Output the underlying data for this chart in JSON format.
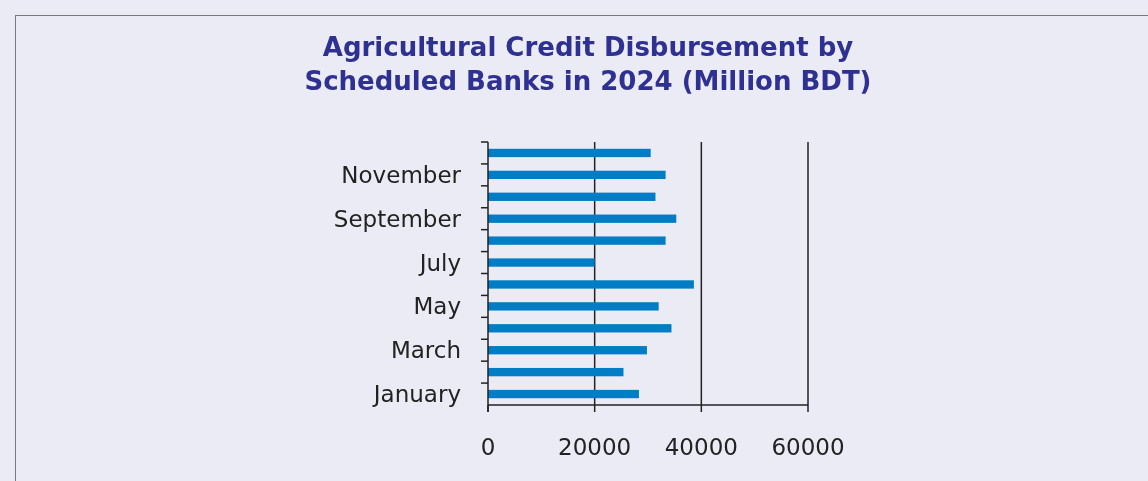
{
  "chart_data": {
    "type": "bar",
    "orientation": "horizontal",
    "title": "Agricultural Credit Disbursement by\nScheduled Banks in 2024 (Million BDT)",
    "categories": [
      null,
      "November",
      null,
      "September",
      null,
      "July",
      null,
      "May",
      null,
      "March",
      null,
      "January"
    ],
    "values": [
      30500,
      33300,
      31400,
      35300,
      33300,
      20000,
      38600,
      32000,
      34400,
      29800,
      25400,
      28300
    ],
    "color": "#007dc5",
    "xlim": [
      0,
      60000
    ],
    "xticks": [
      0,
      20000,
      40000,
      60000
    ],
    "grid": "x"
  }
}
